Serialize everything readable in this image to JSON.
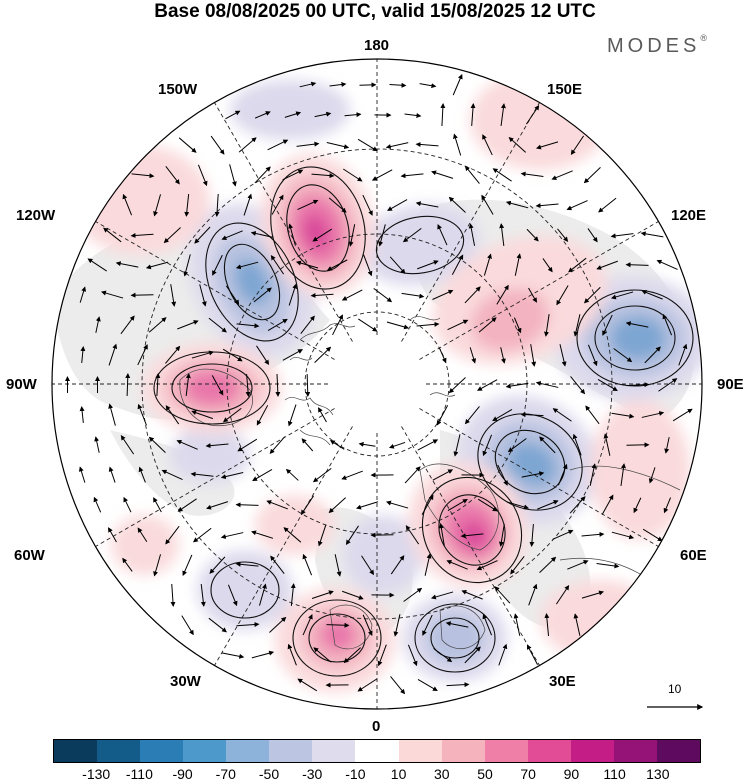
{
  "title": "Base 08/08/2025 00 UTC, valid 15/08/2025 12 UTC",
  "brand": {
    "name": "MODES",
    "mark": "®"
  },
  "longitude_labels": {
    "lon_180": "180",
    "lon_150w": "150W",
    "lon_150e": "150E",
    "lon_120w": "120W",
    "lon_120e": "120E",
    "lon_90w": "90W",
    "lon_90e": "90E",
    "lon_60w": "60W",
    "lon_60e": "60E",
    "lon_30w": "30W",
    "lon_30e": "30E",
    "lon_0": "0"
  },
  "vector_scale_label": "10",
  "colorbar": {
    "colors": [
      "#0b3b5c",
      "#135c8a",
      "#2a7db5",
      "#4d99cc",
      "#8db3db",
      "#bcc6e2",
      "#dedced",
      "#ffffff",
      "#fbd9d9",
      "#f5b3be",
      "#f07fa8",
      "#e24c96",
      "#c41d86",
      "#951277",
      "#5e0a5e"
    ],
    "ticks": [
      "-130",
      "-110",
      "-90",
      "-70",
      "-50",
      "-30",
      "-10",
      "10",
      "30",
      "50",
      "70",
      "90",
      "110",
      "130"
    ]
  },
  "anomaly_colors": {
    "neg_weak": "#dcd9ec",
    "neg_mid": "#b8c2e0",
    "neg_strong": "#7ea6d2",
    "pos_weak": "#fadadc",
    "pos_mid": "#f3b3c0",
    "pos_strong": "#e977aa",
    "pos_core": "#d9479a",
    "land_gray": "#eeeeee"
  }
}
